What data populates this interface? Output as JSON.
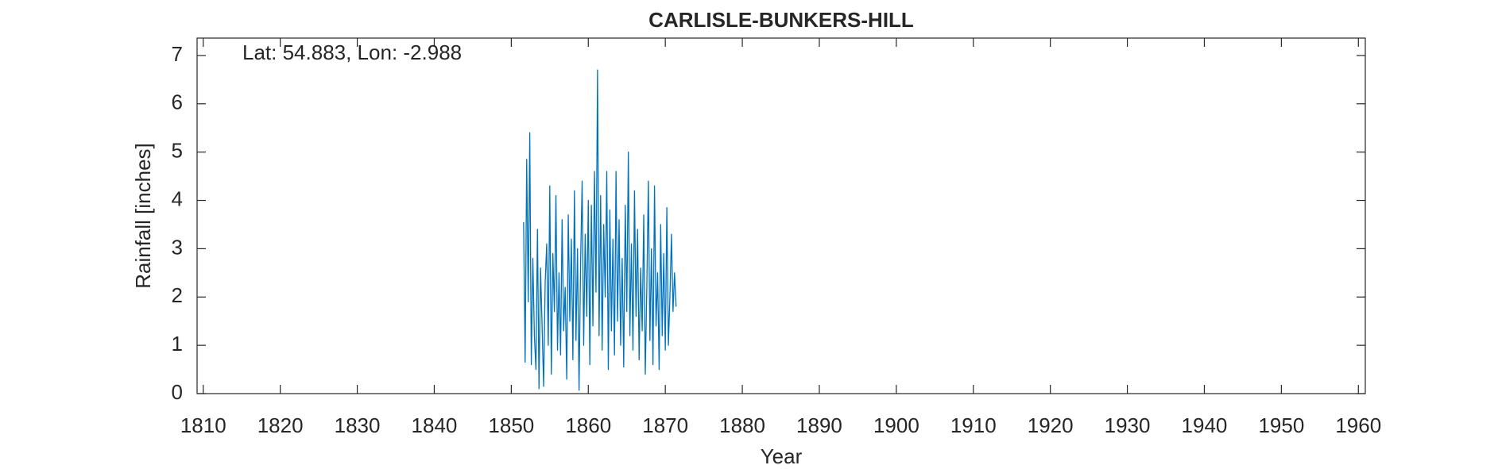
{
  "chart_data": {
    "type": "line",
    "title": "CARLISLE-BUNKERS-HILL",
    "annotation": "Lat: 54.883, Lon: -2.988",
    "x_label": "Year",
    "y_label": "Rainfall [inches]",
    "color": "#0072bd",
    "xlim": [
      1809.2,
      1960.9
    ],
    "ylim": [
      0,
      7.36
    ],
    "xticks": [
      1810,
      1820,
      1830,
      1840,
      1850,
      1860,
      1870,
      1880,
      1890,
      1900,
      1910,
      1920,
      1930,
      1940,
      1950,
      1960
    ],
    "yticks": [
      0,
      1,
      2,
      3,
      4,
      5,
      6,
      7
    ],
    "x": [
      1851.6,
      1851.8,
      1852.0,
      1852.2,
      1852.4,
      1852.6,
      1852.8,
      1853.0,
      1853.2,
      1853.4,
      1853.6,
      1853.8,
      1854.0,
      1854.2,
      1854.4,
      1854.6,
      1854.8,
      1855.0,
      1855.2,
      1855.4,
      1855.6,
      1855.8,
      1856.0,
      1856.2,
      1856.4,
      1856.6,
      1856.8,
      1857.0,
      1857.2,
      1857.4,
      1857.6,
      1857.8,
      1858.0,
      1858.2,
      1858.4,
      1858.6,
      1858.8,
      1859.0,
      1859.2,
      1859.4,
      1859.6,
      1859.8,
      1860.0,
      1860.2,
      1860.4,
      1860.6,
      1860.8,
      1861.0,
      1861.2,
      1861.4,
      1861.6,
      1861.8,
      1862.0,
      1862.2,
      1862.4,
      1862.6,
      1862.8,
      1863.0,
      1863.2,
      1863.4,
      1863.6,
      1863.8,
      1864.0,
      1864.2,
      1864.4,
      1864.6,
      1864.8,
      1865.0,
      1865.2,
      1865.4,
      1865.6,
      1865.8,
      1866.0,
      1866.2,
      1866.4,
      1866.6,
      1866.8,
      1867.0,
      1867.2,
      1867.4,
      1867.6,
      1867.8,
      1868.0,
      1868.2,
      1868.4,
      1868.6,
      1868.8,
      1869.0,
      1869.2,
      1869.4,
      1869.6,
      1869.8,
      1870.0,
      1870.2,
      1870.4,
      1870.6,
      1870.8,
      1871.0,
      1871.2,
      1871.4
    ],
    "values": [
      3.55,
      0.65,
      4.85,
      1.9,
      5.4,
      0.6,
      2.8,
      1.2,
      0.5,
      3.4,
      0.1,
      2.6,
      1.4,
      0.15,
      2.3,
      3.1,
      1.0,
      4.3,
      0.4,
      2.9,
      1.7,
      4.1,
      0.9,
      2.5,
      0.8,
      3.6,
      1.3,
      2.2,
      0.3,
      3.7,
      1.5,
      3.2,
      0.7,
      4.2,
      1.1,
      3.0,
      0.07,
      2.7,
      4.4,
      1.0,
      3.3,
      1.6,
      4.0,
      0.6,
      3.9,
      1.4,
      4.6,
      2.1,
      6.7,
      1.2,
      4.1,
      0.9,
      3.5,
      2.0,
      4.6,
      0.5,
      3.8,
      1.3,
      3.2,
      0.8,
      4.6,
      1.5,
      3.6,
      1.0,
      2.8,
      0.55,
      3.9,
      1.7,
      5.0,
      1.2,
      3.1,
      0.9,
      4.2,
      1.6,
      3.4,
      0.7,
      2.6,
      1.3,
      3.7,
      0.4,
      2.2,
      4.4,
      1.1,
      3.0,
      0.6,
      4.3,
      1.4,
      2.5,
      0.5,
      3.5,
      1.2,
      2.9,
      0.9,
      3.85,
      1.0,
      2.0,
      3.3,
      1.7,
      2.5,
      1.8
    ]
  }
}
